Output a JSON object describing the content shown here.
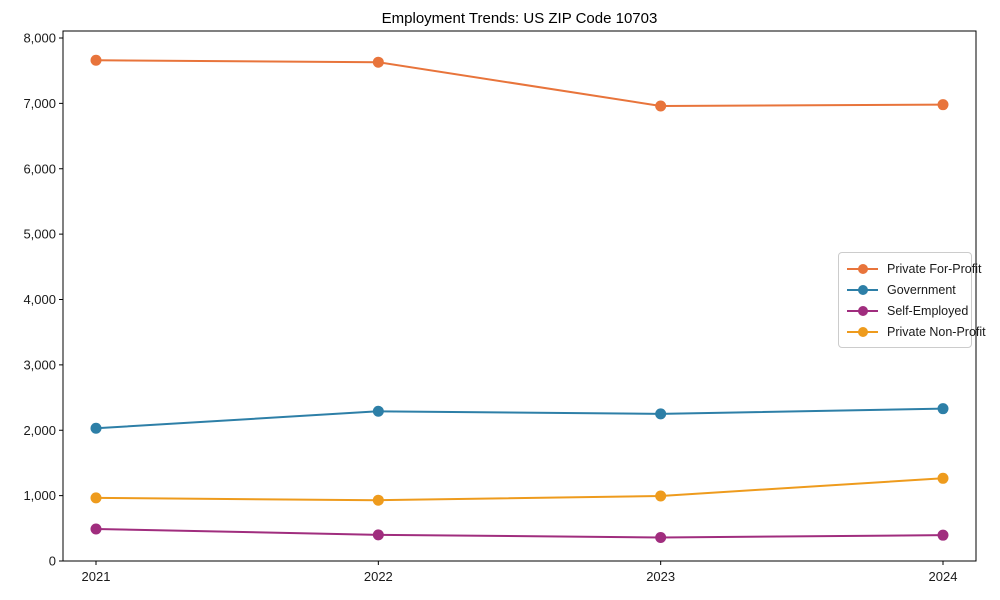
{
  "chart_data": {
    "type": "line",
    "title": "Employment Trends: US ZIP Code 10703",
    "categories": [
      "2021",
      "2022",
      "2023",
      "2024"
    ],
    "series": [
      {
        "name": "Private For-Profit",
        "color": "#e8743b",
        "values": [
          7660,
          7630,
          6960,
          6980
        ]
      },
      {
        "name": "Government",
        "color": "#2d7fa7",
        "values": [
          2030,
          2290,
          2250,
          2330
        ]
      },
      {
        "name": "Self-Employed",
        "color": "#a02d7e",
        "values": [
          490,
          400,
          360,
          395
        ]
      },
      {
        "name": "Private Non-Profit",
        "color": "#ee9b1d",
        "values": [
          965,
          930,
          995,
          1265
        ]
      }
    ],
    "xlabel": "",
    "ylabel": "",
    "ylim": [
      0,
      8000
    ],
    "ytick_step": 1000,
    "ytick_labels": [
      "0",
      "1,000",
      "2,000",
      "3,000",
      "4,000",
      "5,000",
      "6,000",
      "7,000",
      "8,000"
    ],
    "grid": false,
    "legend_position": "center right",
    "marker": "o",
    "axis_color": "#000000"
  }
}
